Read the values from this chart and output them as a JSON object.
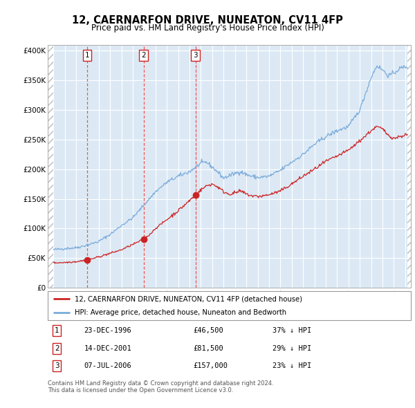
{
  "title": "12, CAERNARFON DRIVE, NUNEATON, CV11 4FP",
  "subtitle": "Price paid vs. HM Land Registry's House Price Index (HPI)",
  "legend_line1": "12, CAERNARFON DRIVE, NUNEATON, CV11 4FP (detached house)",
  "legend_line2": "HPI: Average price, detached house, Nuneaton and Bedworth",
  "footer": "Contains HM Land Registry data © Crown copyright and database right 2024.\nThis data is licensed under the Open Government Licence v3.0.",
  "transactions": [
    {
      "num": 1,
      "date": "23-DEC-1996",
      "price": 46500,
      "pct": "37%",
      "dir": "↓",
      "year_x": 1996.97
    },
    {
      "num": 2,
      "date": "14-DEC-2001",
      "price": 81500,
      "pct": "29%",
      "dir": "↓",
      "year_x": 2001.95
    },
    {
      "num": 3,
      "date": "07-JUL-2006",
      "price": 157000,
      "pct": "23%",
      "dir": "↓",
      "year_x": 2006.52
    }
  ],
  "hpi_color": "#7aabdb",
  "price_color": "#cc2222",
  "vline_color": "#ee4444",
  "marker_color": "#cc2222",
  "box_color": "#cc2222",
  "background_color": "#dce9f5",
  "grid_color": "#ffffff",
  "ylim": [
    0,
    410000
  ],
  "xlim_start": 1993.5,
  "xlim_end": 2025.5
}
